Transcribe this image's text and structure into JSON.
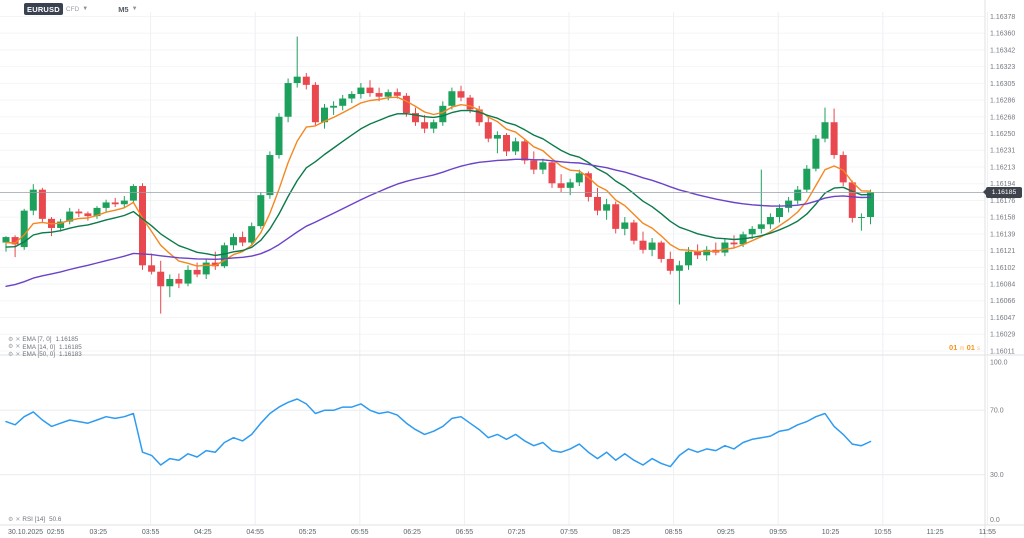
{
  "header": {
    "symbol": "EURUSD",
    "instrument_type": "CFD",
    "timeframe": "M5",
    "caret": "▼"
  },
  "main_panel": {
    "legend": [
      {
        "name": "EMA [7, 0]",
        "value": "1.16185"
      },
      {
        "name": "EMA [14, 0]",
        "value": "1.16185"
      },
      {
        "name": "EMA [50, 0]",
        "value": "1.16183"
      }
    ],
    "current_price": "1.16185",
    "countdown": {
      "minutes": "01",
      "m_unit": "m",
      "seconds": "01",
      "s_unit": "s"
    }
  },
  "rsi_panel": {
    "legend": {
      "name": "RSI [14]",
      "value": "50.6"
    },
    "axis_labels": [
      "100.0",
      "70.0",
      "30.0",
      "0.0"
    ]
  },
  "price_axis": {
    "labels": [
      "1.16378",
      "1.16360",
      "1.16342",
      "1.16323",
      "1.16305",
      "1.16286",
      "1.16268",
      "1.16250",
      "1.16231",
      "1.16213",
      "1.16194",
      "1.16176",
      "1.16158",
      "1.16139",
      "1.16121",
      "1.16102",
      "1.16084",
      "1.16066",
      "1.16047",
      "1.16029",
      "1.16011"
    ]
  },
  "time_axis": {
    "date_label": "30.10.2025",
    "labels": [
      "02:55",
      "03:25",
      "03:55",
      "04:25",
      "04:55",
      "05:25",
      "05:55",
      "06:25",
      "06:55",
      "07:25",
      "07:55",
      "08:25",
      "08:55",
      "09:25",
      "09:55",
      "10:25",
      "10:55",
      "11:25",
      "11:55"
    ]
  },
  "chart_data": {
    "type": "candlestick",
    "symbol": "EURUSD",
    "timeframe": "M5",
    "price_base": 1.16,
    "axis_top_pips": 378,
    "axis_bottom_pips": 11,
    "current_price_pips": 185,
    "candles_ohlc_pips": [
      [
        130,
        137,
        120,
        136
      ],
      [
        136,
        138,
        114,
        128
      ],
      [
        125,
        167,
        122,
        165
      ],
      [
        165,
        194,
        160,
        188
      ],
      [
        188,
        190,
        152,
        156
      ],
      [
        156,
        158,
        137,
        146
      ],
      [
        146,
        156,
        142,
        153
      ],
      [
        153,
        168,
        150,
        164
      ],
      [
        164,
        167,
        158,
        162
      ],
      [
        162,
        164,
        154,
        159
      ],
      [
        159,
        170,
        156,
        168
      ],
      [
        168,
        177,
        164,
        174
      ],
      [
        174,
        179,
        169,
        172
      ],
      [
        172,
        181,
        168,
        176
      ],
      [
        176,
        194,
        174,
        192
      ],
      [
        192,
        195,
        100,
        105
      ],
      [
        105,
        118,
        95,
        98
      ],
      [
        98,
        110,
        52,
        82
      ],
      [
        82,
        95,
        70,
        90
      ],
      [
        90,
        96,
        80,
        85
      ],
      [
        85,
        105,
        82,
        100
      ],
      [
        100,
        108,
        92,
        95
      ],
      [
        95,
        112,
        90,
        108
      ],
      [
        108,
        120,
        100,
        104
      ],
      [
        104,
        130,
        102,
        127
      ],
      [
        127,
        140,
        122,
        136
      ],
      [
        136,
        142,
        126,
        130
      ],
      [
        130,
        152,
        128,
        148
      ],
      [
        148,
        185,
        145,
        182
      ],
      [
        182,
        230,
        178,
        226
      ],
      [
        226,
        272,
        222,
        268
      ],
      [
        268,
        310,
        262,
        305
      ],
      [
        305,
        356,
        300,
        312
      ],
      [
        312,
        316,
        298,
        303
      ],
      [
        303,
        306,
        258,
        262
      ],
      [
        262,
        282,
        255,
        278
      ],
      [
        278,
        285,
        270,
        280
      ],
      [
        280,
        292,
        275,
        288
      ],
      [
        288,
        296,
        283,
        293
      ],
      [
        293,
        305,
        288,
        300
      ],
      [
        300,
        308,
        290,
        294
      ],
      [
        294,
        300,
        285,
        290
      ],
      [
        290,
        298,
        286,
        295
      ],
      [
        295,
        299,
        288,
        291
      ],
      [
        291,
        294,
        268,
        272
      ],
      [
        272,
        278,
        258,
        262
      ],
      [
        262,
        270,
        250,
        255
      ],
      [
        255,
        265,
        250,
        262
      ],
      [
        262,
        285,
        258,
        280
      ],
      [
        280,
        300,
        276,
        296
      ],
      [
        296,
        302,
        285,
        289
      ],
      [
        289,
        292,
        272,
        276
      ],
      [
        276,
        280,
        258,
        262
      ],
      [
        262,
        268,
        240,
        244
      ],
      [
        244,
        252,
        228,
        248
      ],
      [
        248,
        250,
        225,
        230
      ],
      [
        230,
        245,
        226,
        241
      ],
      [
        241,
        244,
        216,
        220
      ],
      [
        220,
        230,
        205,
        210
      ],
      [
        210,
        222,
        205,
        218
      ],
      [
        218,
        220,
        190,
        195
      ],
      [
        195,
        205,
        185,
        190
      ],
      [
        190,
        200,
        182,
        196
      ],
      [
        196,
        210,
        192,
        206
      ],
      [
        206,
        208,
        175,
        180
      ],
      [
        180,
        190,
        160,
        165
      ],
      [
        165,
        178,
        155,
        172
      ],
      [
        172,
        175,
        140,
        145
      ],
      [
        145,
        158,
        138,
        152
      ],
      [
        152,
        155,
        128,
        132
      ],
      [
        132,
        142,
        118,
        122
      ],
      [
        122,
        135,
        115,
        130
      ],
      [
        130,
        132,
        108,
        112
      ],
      [
        112,
        120,
        95,
        99
      ],
      [
        99,
        110,
        62,
        105
      ],
      [
        105,
        125,
        100,
        120
      ],
      [
        120,
        128,
        112,
        116
      ],
      [
        116,
        126,
        110,
        122
      ],
      [
        122,
        130,
        116,
        119
      ],
      [
        119,
        134,
        115,
        130
      ],
      [
        130,
        138,
        124,
        128
      ],
      [
        128,
        142,
        125,
        139
      ],
      [
        139,
        148,
        134,
        145
      ],
      [
        145,
        210,
        140,
        150
      ],
      [
        150,
        162,
        145,
        158
      ],
      [
        158,
        172,
        152,
        168
      ],
      [
        168,
        180,
        163,
        176
      ],
      [
        176,
        192,
        172,
        188
      ],
      [
        188,
        215,
        185,
        211
      ],
      [
        211,
        248,
        208,
        244
      ],
      [
        244,
        278,
        240,
        262
      ],
      [
        262,
        277,
        222,
        226
      ],
      [
        226,
        230,
        192,
        196
      ],
      [
        196,
        198,
        152,
        157
      ],
      [
        157,
        162,
        143,
        158
      ],
      [
        158,
        188,
        150,
        185
      ]
    ],
    "overlays": [
      {
        "name": "EMA7",
        "period": 7,
        "seed_pips": 130,
        "color": "#f5871f"
      },
      {
        "name": "EMA14",
        "period": 14,
        "seed_pips": 125,
        "color": "#0c7a4a"
      },
      {
        "name": "EMA50",
        "period": 50,
        "seed_pips": 82,
        "color": "#6b42c8"
      }
    ],
    "rsi": {
      "period": 14,
      "color": "#2e9bf0",
      "range": [
        0,
        100
      ],
      "overbought": 70,
      "oversold": 30,
      "values": [
        63,
        61,
        66,
        69,
        64,
        60,
        62,
        64,
        63,
        62,
        64,
        66,
        65,
        66,
        68,
        44,
        42,
        36,
        40,
        39,
        43,
        41,
        45,
        44,
        50,
        53,
        51,
        55,
        62,
        68,
        72,
        75,
        77,
        74,
        68,
        70,
        70,
        72,
        72,
        74,
        70,
        68,
        69,
        67,
        62,
        58,
        55,
        57,
        60,
        65,
        66,
        62,
        58,
        53,
        55,
        52,
        55,
        51,
        48,
        50,
        45,
        44,
        46,
        49,
        44,
        40,
        44,
        39,
        43,
        39,
        36,
        40,
        37,
        35,
        42,
        46,
        44,
        46,
        45,
        48,
        46,
        50,
        52,
        53,
        54,
        57,
        58,
        61,
        63,
        66,
        68,
        60,
        55,
        49,
        48,
        50.6
      ]
    }
  },
  "colors": {
    "up": "#1ea05d",
    "down": "#e8484e",
    "grid_h": "#f3f5f7",
    "grid_v": "#edf0f4",
    "separator": "#dfe2e6",
    "axis_text": "#757a82",
    "time_text": "#5a5f66",
    "price_line": "#9aa0a8",
    "badge_bg": "#3f434c",
    "countdown": "#f7941d",
    "rsi_guide": "#e9ebef"
  }
}
